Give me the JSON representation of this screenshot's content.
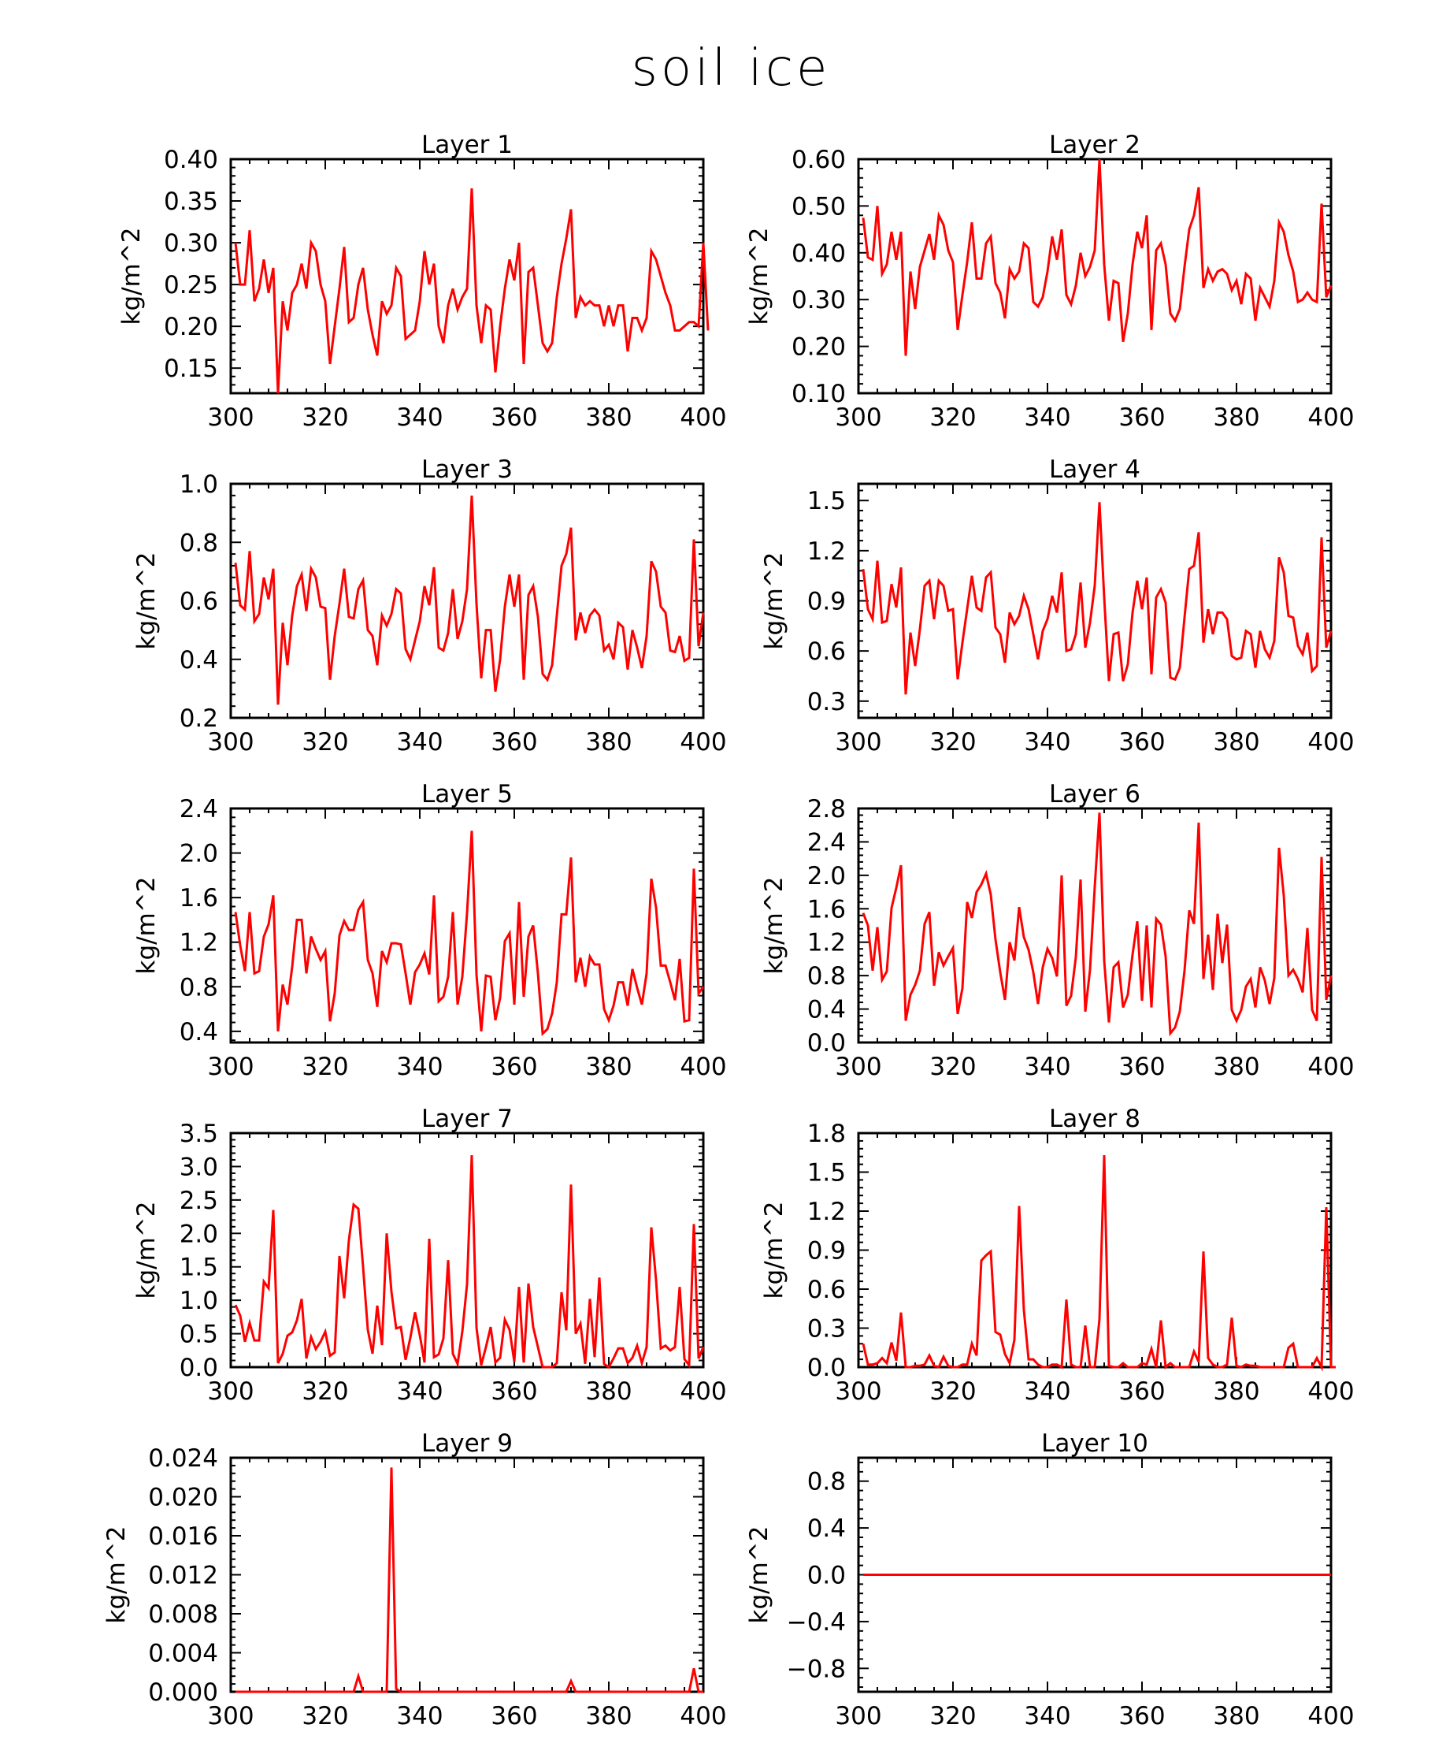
{
  "title": "soil ice",
  "line_color": "#ff0000",
  "chart_data": [
    {
      "type": "line",
      "title": "Layer 1",
      "xlabel": "",
      "ylabel": "kg/m^2",
      "xlim": [
        300,
        400
      ],
      "ylim": [
        0.12,
        0.4
      ],
      "xticks": [
        "300",
        "320",
        "340",
        "360",
        "380",
        "400"
      ],
      "yticks": [
        0.15,
        0.2,
        0.25,
        0.3,
        0.35,
        0.4
      ],
      "ytick_labels": [
        "0.15",
        "0.20",
        "0.25",
        "0.30",
        "0.35",
        "0.40"
      ],
      "x_start": 301,
      "y": [
        0.3,
        0.25,
        0.25,
        0.315,
        0.23,
        0.245,
        0.28,
        0.24,
        0.27,
        0.12,
        0.23,
        0.195,
        0.24,
        0.25,
        0.275,
        0.245,
        0.3,
        0.29,
        0.25,
        0.23,
        0.155,
        0.2,
        0.245,
        0.295,
        0.205,
        0.21,
        0.25,
        0.27,
        0.22,
        0.19,
        0.165,
        0.23,
        0.215,
        0.225,
        0.27,
        0.26,
        0.185,
        0.19,
        0.195,
        0.23,
        0.29,
        0.25,
        0.275,
        0.2,
        0.18,
        0.225,
        0.245,
        0.22,
        0.235,
        0.245,
        0.365,
        0.225,
        0.18,
        0.225,
        0.22,
        0.145,
        0.2,
        0.245,
        0.28,
        0.255,
        0.3,
        0.155,
        0.265,
        0.27,
        0.225,
        0.18,
        0.17,
        0.18,
        0.235,
        0.275,
        0.305,
        0.34,
        0.21,
        0.235,
        0.225,
        0.23,
        0.225,
        0.225,
        0.2,
        0.225,
        0.2,
        0.225,
        0.225,
        0.17,
        0.21,
        0.21,
        0.195,
        0.21,
        0.29,
        0.28,
        0.26,
        0.24,
        0.225,
        0.195,
        0.195,
        0.2,
        0.205,
        0.205,
        0.2,
        0.3,
        0.195
      ]
    },
    {
      "type": "line",
      "title": "Layer 2",
      "xlabel": "",
      "ylabel": "kg/m^2",
      "xlim": [
        300,
        400
      ],
      "ylim": [
        0.1,
        0.6
      ],
      "xticks": [
        "300",
        "320",
        "340",
        "360",
        "380",
        "400"
      ],
      "yticks": [
        0.1,
        0.2,
        0.3,
        0.4,
        0.5,
        0.6
      ],
      "ytick_labels": [
        "0.10",
        "0.20",
        "0.30",
        "0.40",
        "0.50",
        "0.60"
      ],
      "x_start": 301,
      "y": [
        0.475,
        0.39,
        0.385,
        0.5,
        0.355,
        0.375,
        0.445,
        0.385,
        0.445,
        0.18,
        0.36,
        0.28,
        0.37,
        0.405,
        0.44,
        0.385,
        0.48,
        0.46,
        0.405,
        0.38,
        0.235,
        0.31,
        0.38,
        0.465,
        0.345,
        0.345,
        0.42,
        0.435,
        0.335,
        0.315,
        0.26,
        0.365,
        0.345,
        0.36,
        0.42,
        0.41,
        0.295,
        0.285,
        0.305,
        0.36,
        0.435,
        0.385,
        0.45,
        0.31,
        0.29,
        0.33,
        0.4,
        0.35,
        0.37,
        0.405,
        0.6,
        0.375,
        0.255,
        0.34,
        0.335,
        0.21,
        0.27,
        0.375,
        0.445,
        0.41,
        0.48,
        0.235,
        0.405,
        0.42,
        0.375,
        0.27,
        0.255,
        0.28,
        0.37,
        0.45,
        0.48,
        0.54,
        0.325,
        0.365,
        0.34,
        0.36,
        0.365,
        0.355,
        0.32,
        0.34,
        0.29,
        0.355,
        0.345,
        0.255,
        0.325,
        0.305,
        0.285,
        0.34,
        0.465,
        0.445,
        0.395,
        0.36,
        0.295,
        0.3,
        0.315,
        0.3,
        0.295,
        0.505,
        0.305,
        0.33
      ]
    },
    {
      "type": "line",
      "title": "Layer 3",
      "xlabel": "",
      "ylabel": "kg/m^2",
      "xlim": [
        300,
        400
      ],
      "ylim": [
        0.2,
        1.0
      ],
      "xticks": [
        "300",
        "320",
        "340",
        "360",
        "380",
        "400"
      ],
      "yticks": [
        0.2,
        0.4,
        0.6,
        0.8,
        1.0
      ],
      "ytick_labels": [
        "0.2",
        "0.4",
        "0.6",
        "0.8",
        "1.0"
      ],
      "x_start": 301,
      "y": [
        0.73,
        0.585,
        0.57,
        0.77,
        0.53,
        0.555,
        0.68,
        0.605,
        0.71,
        0.245,
        0.525,
        0.38,
        0.55,
        0.65,
        0.69,
        0.565,
        0.71,
        0.68,
        0.58,
        0.575,
        0.33,
        0.48,
        0.59,
        0.71,
        0.545,
        0.54,
        0.64,
        0.67,
        0.5,
        0.48,
        0.38,
        0.55,
        0.515,
        0.555,
        0.64,
        0.625,
        0.435,
        0.4,
        0.465,
        0.53,
        0.65,
        0.585,
        0.715,
        0.44,
        0.43,
        0.49,
        0.64,
        0.47,
        0.53,
        0.64,
        0.96,
        0.59,
        0.335,
        0.5,
        0.5,
        0.29,
        0.4,
        0.58,
        0.69,
        0.58,
        0.69,
        0.33,
        0.62,
        0.65,
        0.545,
        0.35,
        0.33,
        0.38,
        0.55,
        0.72,
        0.76,
        0.85,
        0.465,
        0.56,
        0.49,
        0.55,
        0.57,
        0.55,
        0.43,
        0.45,
        0.4,
        0.525,
        0.51,
        0.365,
        0.5,
        0.44,
        0.37,
        0.48,
        0.735,
        0.7,
        0.58,
        0.56,
        0.43,
        0.425,
        0.48,
        0.395,
        0.405,
        0.81,
        0.445,
        0.56
      ]
    },
    {
      "type": "line",
      "title": "Layer 4",
      "xlabel": "",
      "ylabel": "kg/m^2",
      "xlim": [
        300,
        400
      ],
      "ylim": [
        0.2,
        1.6
      ],
      "xticks": [
        "300",
        "320",
        "340",
        "360",
        "380",
        "400"
      ],
      "yticks": [
        0.3,
        0.6,
        0.9,
        1.2,
        1.5
      ],
      "ytick_labels": [
        "0.3",
        "0.6",
        "0.9",
        "1.2",
        "1.5"
      ],
      "x_start": 301,
      "y": [
        1.09,
        0.85,
        0.79,
        1.14,
        0.77,
        0.78,
        1.0,
        0.86,
        1.1,
        0.34,
        0.71,
        0.51,
        0.73,
        0.99,
        1.02,
        0.79,
        1.02,
        0.99,
        0.84,
        0.85,
        0.43,
        0.65,
        0.85,
        1.05,
        0.86,
        0.84,
        1.04,
        1.07,
        0.74,
        0.7,
        0.53,
        0.83,
        0.76,
        0.81,
        0.93,
        0.85,
        0.7,
        0.55,
        0.72,
        0.79,
        0.93,
        0.83,
        1.07,
        0.6,
        0.61,
        0.7,
        1.01,
        0.62,
        0.77,
        0.99,
        1.49,
        0.92,
        0.42,
        0.7,
        0.71,
        0.42,
        0.52,
        0.83,
        1.02,
        0.85,
        1.04,
        0.46,
        0.92,
        0.97,
        0.89,
        0.44,
        0.43,
        0.5,
        0.8,
        1.09,
        1.11,
        1.31,
        0.65,
        0.85,
        0.7,
        0.83,
        0.83,
        0.79,
        0.57,
        0.55,
        0.56,
        0.72,
        0.7,
        0.5,
        0.72,
        0.61,
        0.56,
        0.66,
        1.16,
        1.07,
        0.81,
        0.8,
        0.63,
        0.58,
        0.71,
        0.48,
        0.51,
        1.28,
        0.62,
        0.72
      ]
    },
    {
      "type": "line",
      "title": "Layer 5",
      "xlabel": "",
      "ylabel": "kg/m^2",
      "xlim": [
        300,
        400
      ],
      "ylim": [
        0.3,
        2.4
      ],
      "xticks": [
        "300",
        "320",
        "340",
        "360",
        "380",
        "400"
      ],
      "yticks": [
        0.4,
        0.8,
        1.2,
        1.6,
        2.0,
        2.4
      ],
      "ytick_labels": [
        "0.4",
        "0.8",
        "1.2",
        "1.6",
        "2.0",
        "2.4"
      ],
      "x_start": 301,
      "y": [
        1.47,
        1.17,
        0.94,
        1.47,
        0.92,
        0.94,
        1.25,
        1.36,
        1.62,
        0.4,
        0.82,
        0.64,
        0.98,
        1.4,
        1.4,
        0.92,
        1.25,
        1.14,
        1.04,
        1.12,
        0.49,
        0.74,
        1.26,
        1.39,
        1.31,
        1.31,
        1.49,
        1.56,
        1.04,
        0.92,
        0.62,
        1.12,
        1.02,
        1.19,
        1.19,
        1.18,
        0.92,
        0.64,
        0.93,
        1.0,
        1.1,
        0.91,
        1.62,
        0.67,
        0.71,
        0.89,
        1.47,
        0.64,
        0.89,
        1.46,
        2.2,
        0.91,
        0.4,
        0.9,
        0.89,
        0.5,
        0.7,
        1.21,
        1.28,
        0.64,
        1.56,
        0.71,
        1.25,
        1.35,
        0.92,
        0.38,
        0.42,
        0.56,
        0.84,
        1.45,
        1.45,
        1.96,
        0.84,
        1.06,
        0.8,
        1.07,
        1.0,
        1.0,
        0.6,
        0.5,
        0.63,
        0.84,
        0.84,
        0.63,
        0.96,
        0.79,
        0.64,
        0.92,
        1.77,
        1.51,
        0.99,
        0.99,
        0.84,
        0.68,
        1.05,
        0.49,
        0.5,
        1.86,
        0.74,
        0.8
      ]
    },
    {
      "type": "line",
      "title": "Layer 6",
      "xlabel": "",
      "ylabel": "kg/m^2",
      "xlim": [
        300,
        400
      ],
      "ylim": [
        0.0,
        2.8
      ],
      "xticks": [
        "300",
        "320",
        "340",
        "360",
        "380",
        "400"
      ],
      "yticks": [
        0.0,
        0.4,
        0.8,
        1.2,
        1.6,
        2.0,
        2.4,
        2.8
      ],
      "ytick_labels": [
        "0.0",
        "0.4",
        "0.8",
        "1.2",
        "1.6",
        "2.0",
        "2.4",
        "2.8"
      ],
      "x_start": 301,
      "y": [
        1.55,
        1.4,
        0.86,
        1.38,
        0.75,
        0.85,
        1.61,
        1.85,
        2.12,
        0.26,
        0.57,
        0.69,
        0.86,
        1.42,
        1.56,
        0.68,
        1.08,
        0.92,
        1.03,
        1.13,
        0.34,
        0.65,
        1.68,
        1.49,
        1.8,
        1.89,
        2.02,
        1.77,
        1.23,
        0.84,
        0.51,
        1.2,
        0.98,
        1.62,
        1.26,
        1.11,
        0.84,
        0.46,
        0.9,
        1.12,
        1.01,
        0.79,
        2.0,
        0.44,
        0.56,
        1.02,
        1.95,
        0.37,
        0.87,
        1.86,
        2.75,
        0.98,
        0.24,
        0.9,
        0.96,
        0.42,
        0.57,
        1.05,
        1.45,
        0.5,
        1.4,
        0.42,
        1.48,
        1.41,
        1.03,
        0.11,
        0.18,
        0.37,
        0.86,
        1.58,
        1.42,
        2.63,
        0.76,
        1.29,
        0.63,
        1.54,
        0.95,
        1.41,
        0.39,
        0.26,
        0.39,
        0.67,
        0.76,
        0.42,
        0.9,
        0.74,
        0.46,
        0.77,
        2.33,
        1.76,
        0.8,
        0.87,
        0.76,
        0.6,
        1.37,
        0.39,
        0.26,
        2.22,
        0.51,
        0.8
      ]
    },
    {
      "type": "line",
      "title": "Layer 7",
      "xlabel": "",
      "ylabel": "kg/m^2",
      "xlim": [
        300,
        400
      ],
      "ylim": [
        0.0,
        3.5
      ],
      "xticks": [
        "300",
        "320",
        "340",
        "360",
        "380",
        "400"
      ],
      "yticks": [
        0.0,
        0.5,
        1.0,
        1.5,
        2.0,
        2.5,
        3.0,
        3.5
      ],
      "ytick_labels": [
        "0.0",
        "0.5",
        "1.0",
        "1.5",
        "2.0",
        "2.5",
        "3.0",
        "3.5"
      ],
      "x_start": 301,
      "y": [
        0.93,
        0.77,
        0.38,
        0.66,
        0.4,
        0.4,
        1.28,
        1.18,
        2.35,
        0.06,
        0.2,
        0.47,
        0.52,
        0.7,
        1.02,
        0.13,
        0.45,
        0.27,
        0.38,
        0.53,
        0.17,
        0.22,
        1.66,
        1.03,
        1.9,
        2.43,
        2.37,
        1.5,
        0.56,
        0.2,
        0.92,
        0.33,
        2.0,
        1.13,
        0.58,
        0.6,
        0.11,
        0.44,
        0.82,
        0.48,
        0.07,
        1.92,
        0.15,
        0.19,
        0.43,
        1.6,
        0.2,
        0.05,
        0.53,
        1.24,
        3.17,
        0.59,
        0.03,
        0.3,
        0.6,
        0.07,
        0.14,
        0.71,
        0.56,
        0.08,
        1.2,
        0.07,
        1.25,
        0.6,
        0.3,
        0.0,
        0.0,
        0.0,
        0.06,
        1.12,
        0.55,
        2.73,
        0.5,
        0.65,
        0.05,
        1.02,
        0.15,
        1.34,
        0.05,
        0.0,
        0.13,
        0.28,
        0.28,
        0.06,
        0.14,
        0.32,
        0.06,
        0.3,
        2.09,
        1.3,
        0.28,
        0.32,
        0.25,
        0.3,
        1.2,
        0.12,
        0.03,
        2.14,
        0.13,
        0.3
      ]
    },
    {
      "type": "line",
      "title": "Layer 8",
      "xlabel": "",
      "ylabel": "kg/m^2",
      "xlim": [
        300,
        400
      ],
      "ylim": [
        0.0,
        1.8
      ],
      "xticks": [
        "300",
        "320",
        "340",
        "360",
        "380",
        "400"
      ],
      "yticks": [
        0.0,
        0.3,
        0.6,
        0.9,
        1.2,
        1.5,
        1.8
      ],
      "ytick_labels": [
        "0.0",
        "0.3",
        "0.6",
        "0.9",
        "1.2",
        "1.5",
        "1.8"
      ],
      "x_start": 301,
      "y": [
        0.18,
        0.02,
        0.02,
        0.03,
        0.07,
        0.03,
        0.19,
        0.05,
        0.42,
        0.0,
        0.0,
        0.01,
        0.01,
        0.02,
        0.09,
        0.01,
        0.0,
        0.08,
        0.01,
        0.0,
        0.0,
        0.02,
        0.02,
        0.18,
        0.09,
        0.82,
        0.86,
        0.89,
        0.27,
        0.25,
        0.1,
        0.03,
        0.21,
        1.24,
        0.44,
        0.06,
        0.06,
        0.02,
        0.0,
        0.0,
        0.02,
        0.02,
        0.0,
        0.52,
        0.02,
        0.0,
        0.0,
        0.32,
        0.0,
        0.0,
        0.37,
        1.63,
        0.01,
        0.0,
        0.0,
        0.03,
        0.0,
        0.0,
        0.0,
        0.03,
        0.02,
        0.14,
        0.0,
        0.36,
        0.0,
        0.03,
        0.0,
        0.0,
        0.0,
        0.0,
        0.12,
        0.04,
        0.89,
        0.07,
        0.02,
        0.0,
        0.0,
        0.02,
        0.38,
        0.01,
        0.0,
        0.02,
        0.01,
        0.01,
        0.0,
        0.0,
        0.0,
        0.0,
        0.0,
        0.0,
        0.15,
        0.18,
        0.0,
        0.0,
        0.0,
        0.0,
        0.07,
        0.0,
        1.23,
        0.0,
        0.0
      ]
    },
    {
      "type": "line",
      "title": "Layer 9",
      "xlabel": "",
      "ylabel": "kg/m^2",
      "xlim": [
        300,
        400
      ],
      "ylim": [
        0.0,
        0.024
      ],
      "xticks": [
        "300",
        "320",
        "340",
        "360",
        "380",
        "400"
      ],
      "yticks": [
        0.0,
        0.004,
        0.008,
        0.012,
        0.016,
        0.02,
        0.024
      ],
      "ytick_labels": [
        "0.000",
        "0.004",
        "0.008",
        "0.012",
        "0.016",
        "0.020",
        "0.024"
      ],
      "x_start": 301,
      "y": [
        0,
        0,
        0,
        0,
        0,
        0,
        0,
        0,
        0,
        0,
        0,
        0,
        0,
        0,
        0,
        0,
        0,
        0,
        0,
        0,
        0,
        0,
        0,
        0,
        0,
        0,
        0.0016,
        0,
        0,
        0,
        0,
        0,
        0,
        0.023,
        0.0003,
        0,
        0,
        0,
        0,
        0,
        0,
        0,
        0,
        0,
        0,
        0,
        0,
        0,
        0,
        0,
        0,
        0,
        0,
        0,
        0,
        0,
        0,
        0,
        0,
        0,
        0,
        0,
        0,
        0,
        0,
        0,
        0,
        0,
        0,
        0,
        0,
        0.0011,
        0,
        0,
        0,
        0,
        0,
        0,
        0,
        0,
        0,
        0,
        0,
        0,
        0,
        0,
        0,
        0,
        0,
        0,
        0,
        0,
        0,
        0,
        0,
        0,
        0,
        0.0024,
        0,
        0
      ]
    },
    {
      "type": "line",
      "title": "Layer 10",
      "xlabel": "",
      "ylabel": "kg/m^2",
      "xlim": [
        300,
        400
      ],
      "ylim": [
        -1.0,
        1.0
      ],
      "xticks": [
        "300",
        "320",
        "340",
        "360",
        "380",
        "400"
      ],
      "yticks": [
        -0.8,
        -0.4,
        0.0,
        0.4,
        0.8
      ],
      "ytick_labels": [
        "−0.8",
        "−0.4",
        "0.0",
        "0.4",
        "0.8"
      ],
      "x_start": 301,
      "y": [
        0,
        0,
        0,
        0,
        0,
        0,
        0,
        0,
        0,
        0,
        0,
        0,
        0,
        0,
        0,
        0,
        0,
        0,
        0,
        0,
        0,
        0,
        0,
        0,
        0,
        0,
        0,
        0,
        0,
        0,
        0,
        0,
        0,
        0,
        0,
        0,
        0,
        0,
        0,
        0,
        0,
        0,
        0,
        0,
        0,
        0,
        0,
        0,
        0,
        0,
        0,
        0,
        0,
        0,
        0,
        0,
        0,
        0,
        0,
        0,
        0,
        0,
        0,
        0,
        0,
        0,
        0,
        0,
        0,
        0,
        0,
        0,
        0,
        0,
        0,
        0,
        0,
        0,
        0,
        0,
        0,
        0,
        0,
        0,
        0,
        0,
        0,
        0,
        0,
        0,
        0,
        0,
        0,
        0,
        0,
        0,
        0,
        0,
        0,
        0
      ]
    }
  ]
}
